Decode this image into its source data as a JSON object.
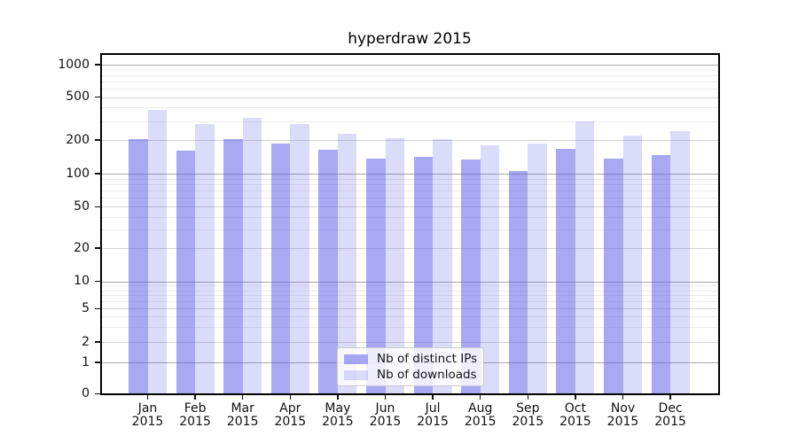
{
  "chart_data": {
    "type": "bar",
    "title": "hyperdraw 2015",
    "categories": [
      "Jan",
      "Feb",
      "Mar",
      "Apr",
      "May",
      "Jun",
      "Jul",
      "Aug",
      "Sep",
      "Oct",
      "Nov",
      "Dec"
    ],
    "x_tick_year_line": "2015",
    "series": [
      {
        "name": "Nb of distinct IPs",
        "color": "rgba(90,90,232,0.52)",
        "values": [
          203,
          161,
          204,
          185,
          165,
          137,
          141,
          133,
          106,
          166,
          137,
          147
        ]
      },
      {
        "name": "Nb of downloads",
        "color": "rgba(90,90,232,0.22)",
        "values": [
          384,
          282,
          320,
          279,
          230,
          206,
          204,
          180,
          185,
          300,
          220,
          241
        ]
      }
    ],
    "yscale": "symlog",
    "ylim": [
      0,
      1000
    ],
    "yticks": [
      0,
      1,
      2,
      5,
      10,
      20,
      50,
      100,
      200,
      500,
      1000
    ],
    "grid": "horizontal, major and minor",
    "legend_position": "lower center",
    "accent_colors": {
      "bar_dark": "#a9a9f3",
      "bar_light": "#dbdbfa",
      "grid_major": "#a9a9a9",
      "grid_minor": "#ebebeb"
    }
  }
}
